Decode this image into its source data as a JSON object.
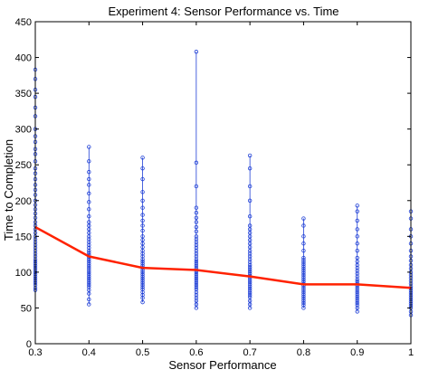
{
  "chart_data": {
    "type": "scatter",
    "title": "Experiment 4: Sensor Performance vs. Time",
    "xlabel": "Sensor Performance",
    "ylabel": "Time to Completion",
    "xlim": [
      0.3,
      1.0
    ],
    "ylim": [
      0,
      450
    ],
    "xticks": [
      0.3,
      0.4,
      0.5,
      0.6,
      0.7,
      0.8,
      0.9,
      1.0
    ],
    "xtick_labels": [
      "0.3",
      "0.4",
      "0.5",
      "0.6",
      "0.7",
      "0.8",
      "0.9",
      "1"
    ],
    "yticks": [
      0,
      50,
      100,
      150,
      200,
      250,
      300,
      350,
      400,
      450
    ],
    "ytick_labels": [
      "0",
      "50",
      "100",
      "150",
      "200",
      "250",
      "300",
      "350",
      "400",
      "450"
    ],
    "grid": false,
    "legend": "none",
    "colors": {
      "points": "#1f3fd6",
      "mean_line": "#ff2200",
      "axes": "#000000"
    },
    "scatter_groups": [
      {
        "x": 0.3,
        "values": [
          383,
          370,
          355,
          345,
          330,
          318,
          300,
          290,
          282,
          272,
          265,
          255,
          245,
          238,
          230,
          222,
          215,
          208,
          200,
          194,
          188,
          182,
          176,
          170,
          165,
          160,
          155,
          150,
          146,
          142,
          138,
          134,
          130,
          126,
          122,
          118,
          115,
          112,
          109,
          106,
          103,
          100,
          97,
          94,
          91,
          88,
          85,
          82,
          78,
          75
        ]
      },
      {
        "x": 0.4,
        "values": [
          275,
          255,
          240,
          230,
          222,
          210,
          198,
          188,
          178,
          170,
          165,
          160,
          155,
          150,
          146,
          142,
          138,
          134,
          130,
          127,
          124,
          121,
          118,
          115,
          112,
          109,
          106,
          103,
          100,
          97,
          94,
          91,
          88,
          85,
          82,
          79,
          75,
          70,
          62,
          55
        ]
      },
      {
        "x": 0.5,
        "values": [
          260,
          245,
          230,
          212,
          200,
          190,
          180,
          172,
          165,
          158,
          150,
          145,
          140,
          135,
          130,
          126,
          122,
          118,
          115,
          112,
          109,
          106,
          103,
          100,
          97,
          94,
          91,
          88,
          85,
          82,
          79,
          76,
          72,
          68,
          64,
          58
        ]
      },
      {
        "x": 0.6,
        "values": [
          408,
          253,
          220,
          190,
          183,
          176,
          170,
          163,
          157,
          150,
          146,
          142,
          138,
          134,
          130,
          126,
          122,
          118,
          115,
          112,
          109,
          106,
          103,
          100,
          97,
          94,
          91,
          88,
          85,
          82,
          79,
          76,
          72,
          68,
          64,
          60,
          55,
          50
        ]
      },
      {
        "x": 0.7,
        "values": [
          263,
          245,
          220,
          200,
          178,
          165,
          160,
          155,
          150,
          145,
          140,
          135,
          130,
          126,
          122,
          118,
          114,
          110,
          107,
          104,
          101,
          98,
          95,
          92,
          89,
          86,
          83,
          80,
          77,
          74,
          71,
          68,
          65,
          60,
          55,
          50
        ]
      },
      {
        "x": 0.8,
        "values": [
          175,
          165,
          150,
          140,
          130,
          120,
          117,
          114,
          111,
          108,
          105,
          102,
          99,
          96,
          93,
          90,
          87,
          84,
          81,
          78,
          75,
          72,
          69,
          66,
          63,
          60,
          57,
          54,
          50
        ]
      },
      {
        "x": 0.9,
        "values": [
          193,
          185,
          172,
          160,
          150,
          140,
          130,
          120,
          115,
          110,
          106,
          102,
          98,
          94,
          90,
          87,
          84,
          81,
          78,
          75,
          72,
          69,
          66,
          63,
          60,
          57,
          54,
          50,
          45
        ]
      },
      {
        "x": 1.0,
        "values": [
          185,
          175,
          160,
          150,
          140,
          130,
          122,
          116,
          110,
          105,
          100,
          96,
          92,
          88,
          84,
          80,
          77,
          74,
          71,
          68,
          65,
          62,
          59,
          56,
          53,
          50,
          45,
          40
        ]
      }
    ],
    "series": [
      {
        "x": [
          0.3,
          0.4,
          0.5,
          0.6,
          0.7,
          0.8,
          0.9,
          1.0
        ],
        "values": [
          163,
          122,
          106,
          103,
          94,
          83,
          83,
          78
        ]
      }
    ]
  }
}
